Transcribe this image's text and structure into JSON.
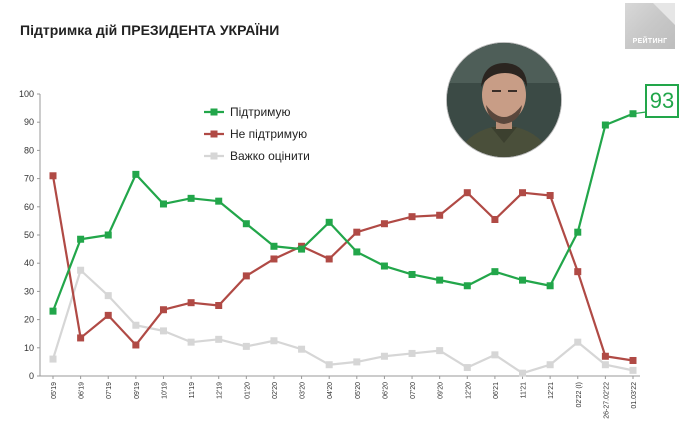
{
  "header": {
    "title": "Підтримка дій ПРЕЗИДЕНТА УКРАЇНИ"
  },
  "logo": {
    "label": "РЕЙТИНГ"
  },
  "callout": {
    "value": "93"
  },
  "colors": {
    "support": "#22a64a",
    "not_support": "#b04a45",
    "hard": "#d6d6d6",
    "axis": "#999999"
  },
  "chart_data": {
    "type": "line",
    "title": "Підтримка дій ПРЕЗИДЕНТА УКРАЇНИ",
    "xlabel": "",
    "ylabel": "",
    "ylim": [
      0,
      100
    ],
    "yticks": [
      0,
      10,
      20,
      30,
      40,
      50,
      60,
      70,
      80,
      90,
      100
    ],
    "grid": false,
    "legend_position": "top-center",
    "categories": [
      "05'19",
      "06'19",
      "07'19",
      "09'19",
      "10'19",
      "11'19",
      "12'19",
      "01'20",
      "02'20",
      "03'20",
      "04'20",
      "05'20",
      "06'20",
      "07'20",
      "09'20",
      "12'20",
      "06'21",
      "11'21",
      "12'21",
      "02'22 (I)",
      "26-27.02'22",
      "01.03'22"
    ],
    "series": [
      {
        "name": "Підтримую",
        "color": "#22a64a",
        "values": [
          23,
          48.5,
          50,
          71.5,
          61,
          63,
          62,
          54,
          46,
          45,
          54.5,
          44,
          39,
          36,
          34,
          32,
          37,
          34,
          32,
          51,
          89,
          93
        ]
      },
      {
        "name": "Не підтримую",
        "color": "#b04a45",
        "values": [
          71,
          13.5,
          21.5,
          11,
          23.5,
          26,
          25,
          35.5,
          41.5,
          46,
          41.5,
          51,
          54,
          56.5,
          57,
          65,
          55.5,
          65,
          64,
          37,
          7,
          5.5
        ]
      },
      {
        "name": "Важко оцінити",
        "color": "#d6d6d6",
        "values": [
          6,
          37.5,
          28.5,
          18,
          16,
          12,
          13,
          10.5,
          12.5,
          9.5,
          4,
          5,
          7,
          8,
          9,
          3,
          7.5,
          1,
          4,
          12,
          4,
          2
        ]
      }
    ]
  }
}
